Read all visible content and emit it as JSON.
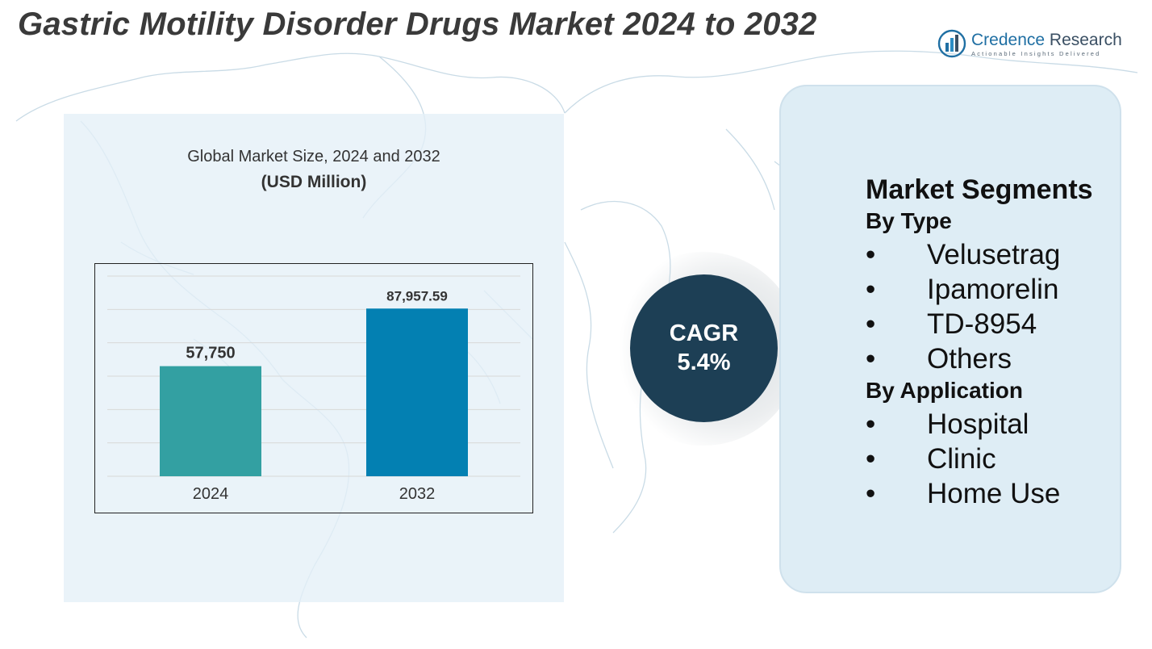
{
  "title": "Gastric Motility Disorder Drugs Market 2024 to 2032",
  "logo": {
    "name_part1": "Credence",
    "name_part2": " Research",
    "tagline": "Actionable Insights Delivered",
    "icon": "bar-chart-logo-icon"
  },
  "chart_data": {
    "type": "bar",
    "title": "Global Market Size, 2024 and 2032",
    "subtitle": "(USD Million)",
    "categories": [
      "2024",
      "2032"
    ],
    "values": [
      57750,
      87957.59
    ],
    "value_labels": [
      "57,750",
      "87,957.59"
    ],
    "bar_colors": [
      "#33a0a2",
      "#0380b2"
    ],
    "ylim": [
      0,
      105000
    ],
    "grid": true,
    "xlabel": "",
    "ylabel": ""
  },
  "cagr": {
    "label": "CAGR",
    "value": "5.4%"
  },
  "segments": {
    "title": "Market Segments",
    "groups": [
      {
        "heading": "By Type",
        "items": [
          "Velusetrag",
          "Ipamorelin",
          "TD-8954",
          "Others"
        ]
      },
      {
        "heading": "By Application",
        "items": [
          "Hospital",
          "Clinic",
          "Home Use"
        ]
      }
    ],
    "bullet": "•"
  },
  "colors": {
    "cagr_circle": "#1d3f55",
    "panel": "#deedf5",
    "logo_blue": "#1f6fa3"
  }
}
